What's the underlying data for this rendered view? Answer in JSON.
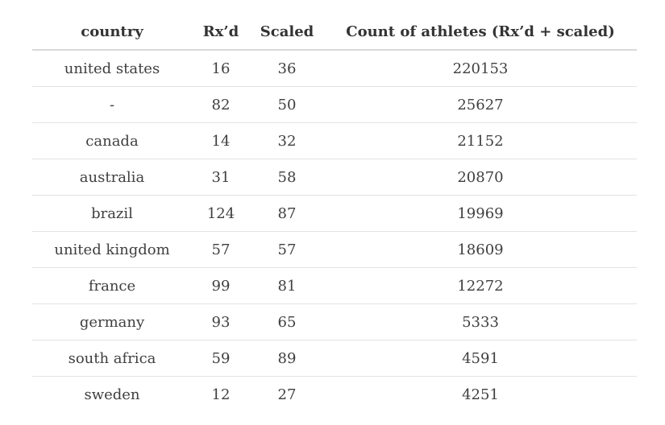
{
  "table": {
    "headers": {
      "country": "country",
      "rx": "Rx’d",
      "scaled": "Scaled",
      "count": "Count of athletes (Rx’d + scaled)"
    },
    "rows": [
      {
        "country": "united states",
        "rx": "16",
        "scaled": "36",
        "count": "220153"
      },
      {
        "country": "-",
        "rx": "82",
        "scaled": "50",
        "count": "25627"
      },
      {
        "country": "canada",
        "rx": "14",
        "scaled": "32",
        "count": "21152"
      },
      {
        "country": "australia",
        "rx": "31",
        "scaled": "58",
        "count": "20870"
      },
      {
        "country": "brazil",
        "rx": "124",
        "scaled": "87",
        "count": "19969"
      },
      {
        "country": "united kingdom",
        "rx": "57",
        "scaled": "57",
        "count": "18609"
      },
      {
        "country": "france",
        "rx": "99",
        "scaled": "81",
        "count": "12272"
      },
      {
        "country": "germany",
        "rx": "93",
        "scaled": "65",
        "count": "5333"
      },
      {
        "country": "south africa",
        "rx": "59",
        "scaled": "89",
        "count": "4591"
      },
      {
        "country": "sweden",
        "rx": "12",
        "scaled": "27",
        "count": "4251"
      }
    ]
  }
}
